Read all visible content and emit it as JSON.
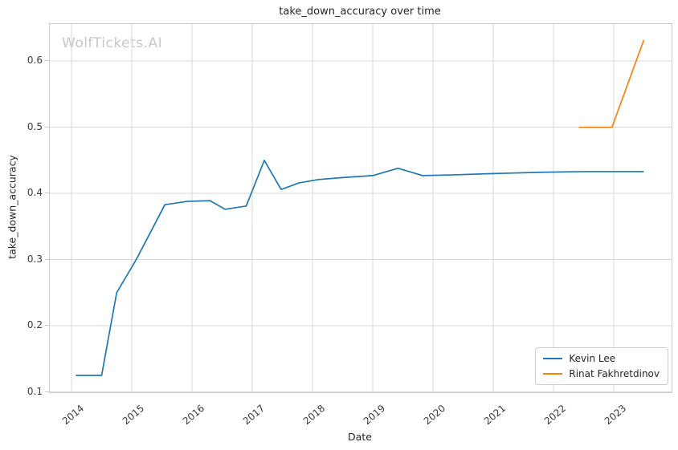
{
  "chart_data": {
    "type": "line",
    "title": "take_down_accuracy over time",
    "xlabel": "Date",
    "ylabel": "take_down_accuracy",
    "watermark": "WolfTickets.AI",
    "grid": true,
    "legend_position": "lower right",
    "xlim": [
      2013.64,
      2023.96
    ],
    "ylim": [
      0.0995,
      0.656
    ],
    "xticks": [
      2014,
      2015,
      2016,
      2017,
      2018,
      2019,
      2020,
      2021,
      2022,
      2023
    ],
    "xtick_labels": [
      "2014",
      "2015",
      "2016",
      "2017",
      "2018",
      "2019",
      "2020",
      "2021",
      "2022",
      "2023"
    ],
    "yticks": [
      0.1,
      0.2,
      0.3,
      0.4,
      0.5,
      0.6
    ],
    "ytick_labels": [
      "0.1",
      "0.2",
      "0.3",
      "0.4",
      "0.5",
      "0.6"
    ],
    "series": [
      {
        "name": "Kevin Lee",
        "color": "#1f77b4",
        "x": [
          2014.07,
          2014.5,
          2014.75,
          2015.08,
          2015.55,
          2015.92,
          2016.3,
          2016.55,
          2016.9,
          2017.2,
          2017.48,
          2017.78,
          2018.1,
          2018.5,
          2019.0,
          2019.42,
          2019.83,
          2020.3,
          2021.0,
          2021.8,
          2022.5,
          2023.5
        ],
        "y": [
          0.125,
          0.125,
          0.25,
          0.301,
          0.383,
          0.388,
          0.389,
          0.376,
          0.381,
          0.45,
          0.406,
          0.416,
          0.421,
          0.424,
          0.427,
          0.438,
          0.427,
          0.428,
          0.43,
          0.432,
          0.433,
          0.433
        ]
      },
      {
        "name": "Rinat Fakhretdinov",
        "color": "#ff7f0e",
        "x": [
          2022.42,
          2022.97,
          2023.5
        ],
        "y": [
          0.5,
          0.5,
          0.632
        ]
      }
    ]
  },
  "colors": {
    "grid": "#d7d7d7",
    "spine": "#cbcbcb",
    "text": "#262626",
    "tick_text": "#3b3b3b",
    "watermark": "#c6c8ca",
    "background": "#ffffff"
  }
}
